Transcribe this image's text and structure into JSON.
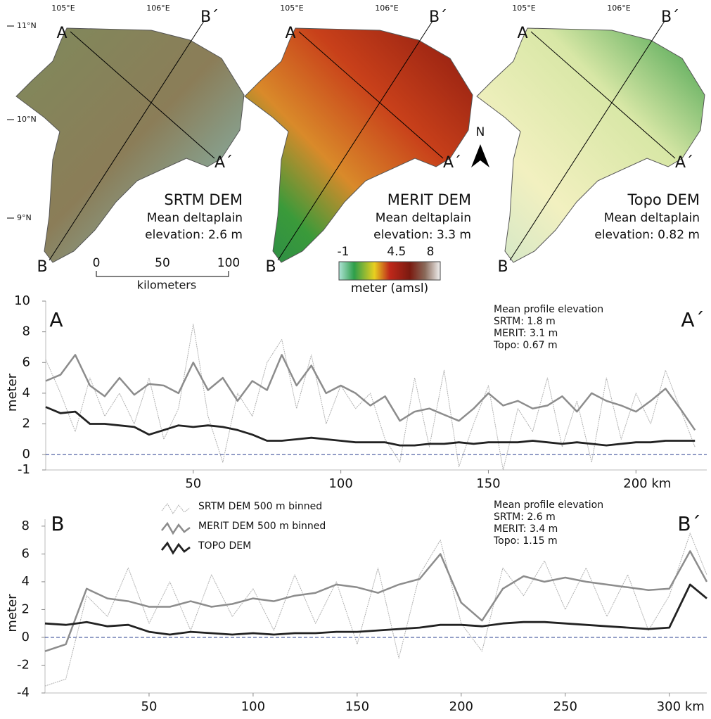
{
  "maps": {
    "lon_labels": [
      "105°E",
      "106°E"
    ],
    "lat_labels": [
      "11°N",
      "10°N",
      "9°N"
    ],
    "section_labels": [
      "A",
      "A´",
      "B",
      "B´"
    ],
    "north": "N",
    "panels": [
      {
        "title": "SRTM DEM",
        "caption": [
          "Mean deltaplain",
          "elevation: 2.6 m"
        ]
      },
      {
        "title": "MERIT DEM",
        "caption": [
          "Mean deltaplain",
          "elevation: 3.3 m"
        ]
      },
      {
        "title": "Topo DEM",
        "caption": [
          "Mean deltaplain",
          "elevation: 0.82 m"
        ]
      }
    ],
    "scale_bar": {
      "ticks": [
        0,
        50,
        100
      ],
      "unit": "kilometers"
    },
    "colorbar": {
      "ticks": [
        -1,
        4.5,
        8
      ],
      "label": "meter (amsl)"
    }
  },
  "chart_data": [
    {
      "type": "line",
      "y_label": "meter",
      "annotations": [
        "A",
        "A´",
        "Mean profile elevation",
        "SRTM:   1.8 m",
        "MERIT:  3.1 m",
        "Topo:  0.67 m"
      ],
      "x": [
        0,
        5,
        10,
        15,
        20,
        25,
        30,
        35,
        40,
        45,
        50,
        55,
        60,
        65,
        70,
        75,
        80,
        85,
        90,
        95,
        100,
        105,
        110,
        115,
        120,
        125,
        130,
        135,
        140,
        145,
        150,
        155,
        160,
        165,
        170,
        175,
        180,
        185,
        190,
        195,
        200,
        205,
        210,
        215,
        220
      ],
      "series": [
        {
          "color": "#b0b0b0",
          "values": [
            6.2,
            4.0,
            1.5,
            5.0,
            2.5,
            4.0,
            2.0,
            5.0,
            1.0,
            3.0,
            8.5,
            2.5,
            -0.5,
            4.0,
            2.5,
            6.0,
            7.5,
            3.0,
            6.5,
            2.0,
            4.5,
            3.0,
            4.0,
            1.0,
            -0.5,
            5.0,
            0.5,
            5.5,
            -0.8,
            2.0,
            4.5,
            -1.0,
            3.0,
            1.5,
            5.0,
            0.5,
            3.5,
            -0.5,
            5.0,
            1.0,
            4.0,
            2.0,
            5.5,
            3.0,
            0.5
          ]
        },
        {
          "color": "#8c8c8c",
          "values": [
            4.8,
            5.2,
            6.5,
            4.5,
            3.8,
            5.0,
            3.9,
            4.6,
            4.5,
            4.0,
            6.0,
            4.2,
            5.0,
            3.5,
            4.8,
            4.2,
            6.5,
            4.5,
            5.8,
            4.0,
            4.5,
            4.0,
            3.2,
            3.8,
            2.2,
            2.8,
            3.0,
            2.6,
            2.2,
            3.0,
            4.0,
            3.2,
            3.5,
            3.0,
            3.2,
            3.8,
            2.8,
            4.0,
            3.5,
            3.2,
            2.8,
            3.5,
            4.3,
            3.0,
            1.6
          ]
        },
        {
          "color": "#222222",
          "values": [
            3.1,
            2.7,
            2.8,
            2.0,
            2.0,
            1.9,
            1.8,
            1.3,
            1.6,
            1.9,
            1.8,
            1.9,
            1.8,
            1.6,
            1.3,
            0.9,
            0.9,
            1.0,
            1.1,
            1.0,
            0.9,
            0.8,
            0.8,
            0.8,
            0.6,
            0.6,
            0.7,
            0.7,
            0.8,
            0.7,
            0.8,
            0.8,
            0.8,
            0.9,
            0.8,
            0.7,
            0.8,
            0.7,
            0.6,
            0.7,
            0.8,
            0.8,
            0.9,
            0.9,
            0.9
          ]
        }
      ],
      "xlim": [
        0,
        224
      ],
      "ylim": [
        -1,
        10
      ],
      "xticks": [
        50,
        100,
        150,
        {
          "value": 200,
          "label": "200  km"
        }
      ],
      "yticks": [
        -1,
        0,
        2,
        4,
        6,
        8,
        10
      ],
      "reference_line": 0,
      "reference_color": "#2a3f8f"
    },
    {
      "type": "line",
      "y_label": "meter",
      "annotations": [
        "B",
        "B´",
        "Mean profile elevation",
        "SRTM:   2.6 m",
        "MERIT:  3.4 m",
        "Topo:  1.15 m"
      ],
      "x": [
        0,
        10,
        20,
        30,
        40,
        50,
        60,
        70,
        80,
        90,
        100,
        110,
        120,
        130,
        140,
        150,
        160,
        170,
        180,
        190,
        200,
        210,
        220,
        230,
        240,
        250,
        260,
        270,
        280,
        290,
        300,
        310,
        318
      ],
      "series": [
        {
          "name": "SRTM DEM 500 m binned",
          "color": "#b0b0b0",
          "values": [
            -3.5,
            -3.0,
            3.0,
            1.5,
            5.0,
            1.0,
            4.0,
            0.5,
            4.5,
            1.5,
            3.5,
            0.5,
            4.5,
            1.0,
            4.0,
            -0.5,
            5.0,
            -1.5,
            4.5,
            7.0,
            1.0,
            -1.0,
            5.0,
            3.0,
            5.5,
            2.0,
            5.0,
            1.5,
            4.5,
            0.5,
            3.0,
            7.5,
            4.5
          ]
        },
        {
          "name": "MERIT DEM 500 m binned",
          "color": "#8c8c8c",
          "values": [
            -1.0,
            -0.5,
            3.5,
            2.8,
            2.6,
            2.2,
            2.2,
            2.6,
            2.2,
            2.4,
            2.8,
            2.6,
            3.0,
            3.2,
            3.8,
            3.6,
            3.2,
            3.8,
            4.2,
            6.0,
            2.5,
            1.2,
            3.5,
            4.4,
            4.0,
            4.3,
            4.0,
            3.8,
            3.6,
            3.4,
            3.5,
            6.2,
            4.0
          ]
        },
        {
          "name": "TOPO DEM",
          "color": "#222222",
          "values": [
            1.0,
            0.9,
            1.1,
            0.8,
            0.9,
            0.4,
            0.2,
            0.4,
            0.3,
            0.2,
            0.3,
            0.2,
            0.3,
            0.3,
            0.4,
            0.4,
            0.5,
            0.6,
            0.7,
            0.9,
            0.9,
            0.8,
            1.0,
            1.1,
            1.1,
            1.0,
            0.9,
            0.8,
            0.7,
            0.6,
            0.7,
            3.8,
            2.8
          ]
        }
      ],
      "xlim": [
        0,
        318
      ],
      "ylim": [
        -4,
        8.5
      ],
      "xticks": [
        50,
        100,
        150,
        200,
        250,
        {
          "value": 300,
          "label": "300 km"
        }
      ],
      "yticks": [
        -4,
        -2,
        0,
        2,
        4,
        6,
        8
      ],
      "reference_line": 0,
      "reference_color": "#2a3f8f"
    }
  ]
}
